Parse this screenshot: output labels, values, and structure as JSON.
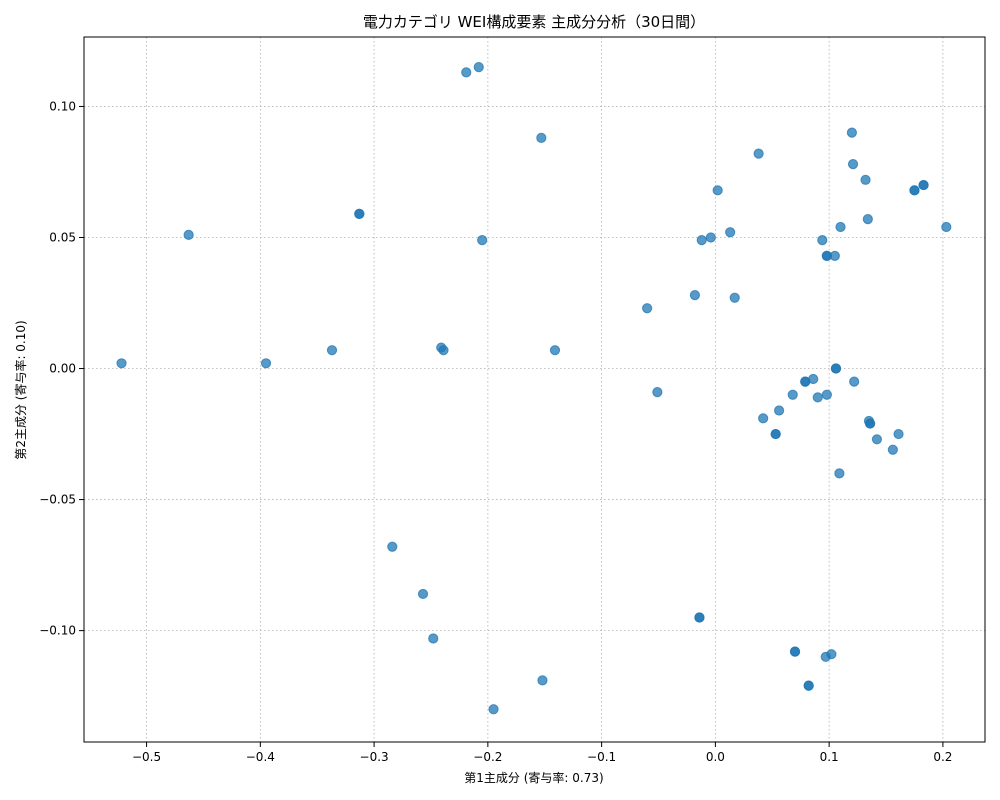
{
  "chart_data": {
    "type": "scatter",
    "title": "電力カテゴリ WEI構成要素 主成分分析（30日間）",
    "xlabel": "第1主成分 (寄与率: 0.73)",
    "ylabel": "第2主成分 (寄与率: 0.10)",
    "xlim": [
      -0.555,
      0.237
    ],
    "ylim": [
      -0.1425,
      0.1265
    ],
    "xticks": [
      -0.5,
      -0.4,
      -0.3,
      -0.2,
      -0.1,
      0.0,
      0.1,
      0.2
    ],
    "xtick_labels": [
      "−0.5",
      "−0.4",
      "−0.3",
      "−0.2",
      "−0.1",
      "0.0",
      "0.1",
      "0.2"
    ],
    "yticks": [
      -0.1,
      -0.05,
      0.0,
      0.05,
      0.1
    ],
    "ytick_labels": [
      "−0.10",
      "−0.05",
      "0.00",
      "0.05",
      "0.10"
    ],
    "grid": true,
    "point_color": "#1f77b4",
    "point_alpha": 0.75,
    "points": [
      {
        "x": -0.522,
        "y": 0.002
      },
      {
        "x": -0.463,
        "y": 0.051
      },
      {
        "x": -0.395,
        "y": 0.002
      },
      {
        "x": -0.337,
        "y": 0.007
      },
      {
        "x": -0.313,
        "y": 0.059
      },
      {
        "x": -0.313,
        "y": 0.059
      },
      {
        "x": -0.284,
        "y": -0.068
      },
      {
        "x": -0.257,
        "y": -0.086
      },
      {
        "x": -0.248,
        "y": -0.103
      },
      {
        "x": -0.241,
        "y": 0.008
      },
      {
        "x": -0.239,
        "y": 0.007
      },
      {
        "x": -0.219,
        "y": 0.113
      },
      {
        "x": -0.208,
        "y": 0.115
      },
      {
        "x": -0.205,
        "y": 0.049
      },
      {
        "x": -0.195,
        "y": -0.13
      },
      {
        "x": -0.153,
        "y": 0.088
      },
      {
        "x": -0.152,
        "y": -0.119
      },
      {
        "x": -0.141,
        "y": 0.007
      },
      {
        "x": -0.06,
        "y": 0.023
      },
      {
        "x": -0.051,
        "y": -0.009
      },
      {
        "x": -0.018,
        "y": 0.028
      },
      {
        "x": -0.014,
        "y": -0.095
      },
      {
        "x": -0.014,
        "y": -0.095
      },
      {
        "x": -0.012,
        "y": 0.049
      },
      {
        "x": -0.004,
        "y": 0.05
      },
      {
        "x": 0.002,
        "y": 0.068
      },
      {
        "x": 0.013,
        "y": 0.052
      },
      {
        "x": 0.017,
        "y": 0.027
      },
      {
        "x": 0.038,
        "y": 0.082
      },
      {
        "x": 0.042,
        "y": -0.019
      },
      {
        "x": 0.053,
        "y": -0.025
      },
      {
        "x": 0.053,
        "y": -0.025
      },
      {
        "x": 0.056,
        "y": -0.016
      },
      {
        "x": 0.068,
        "y": -0.01
      },
      {
        "x": 0.07,
        "y": -0.108
      },
      {
        "x": 0.07,
        "y": -0.108
      },
      {
        "x": 0.079,
        "y": -0.005
      },
      {
        "x": 0.079,
        "y": -0.005
      },
      {
        "x": 0.082,
        "y": -0.121
      },
      {
        "x": 0.082,
        "y": -0.121
      },
      {
        "x": 0.086,
        "y": -0.004
      },
      {
        "x": 0.09,
        "y": -0.011
      },
      {
        "x": 0.094,
        "y": 0.049
      },
      {
        "x": 0.097,
        "y": -0.11
      },
      {
        "x": 0.098,
        "y": 0.043
      },
      {
        "x": 0.098,
        "y": 0.043
      },
      {
        "x": 0.098,
        "y": -0.01
      },
      {
        "x": 0.102,
        "y": -0.109
      },
      {
        "x": 0.105,
        "y": 0.043
      },
      {
        "x": 0.106,
        "y": 0.0
      },
      {
        "x": 0.106,
        "y": 0.0
      },
      {
        "x": 0.109,
        "y": -0.04
      },
      {
        "x": 0.11,
        "y": 0.054
      },
      {
        "x": 0.12,
        "y": 0.09
      },
      {
        "x": 0.121,
        "y": 0.078
      },
      {
        "x": 0.122,
        "y": -0.005
      },
      {
        "x": 0.132,
        "y": 0.072
      },
      {
        "x": 0.134,
        "y": 0.057
      },
      {
        "x": 0.135,
        "y": -0.02
      },
      {
        "x": 0.136,
        "y": -0.021
      },
      {
        "x": 0.136,
        "y": -0.021
      },
      {
        "x": 0.142,
        "y": -0.027
      },
      {
        "x": 0.156,
        "y": -0.031
      },
      {
        "x": 0.161,
        "y": -0.025
      },
      {
        "x": 0.175,
        "y": 0.068
      },
      {
        "x": 0.175,
        "y": 0.068
      },
      {
        "x": 0.183,
        "y": 0.07
      },
      {
        "x": 0.183,
        "y": 0.07
      },
      {
        "x": 0.203,
        "y": 0.054
      }
    ]
  }
}
